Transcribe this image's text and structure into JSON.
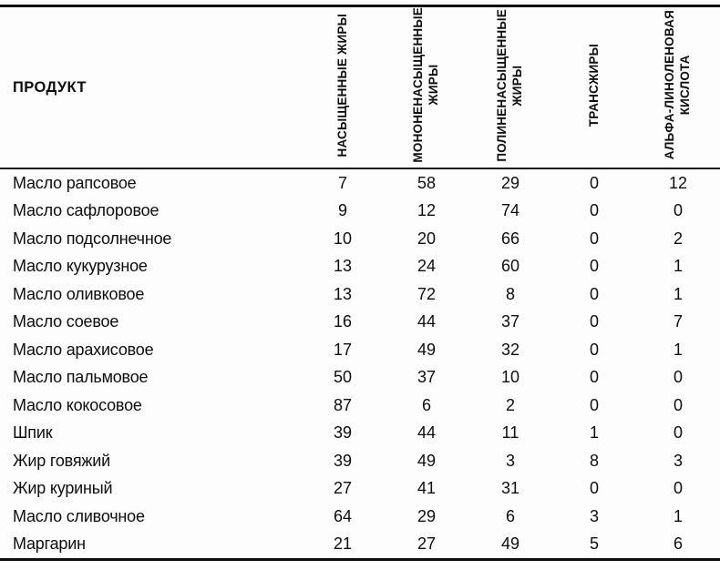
{
  "table": {
    "product_header": "ПРОДУКТ",
    "columns": [
      {
        "id": "saturated-fats",
        "label": "НАСЫЩЕННЫЕ ЖИРЫ",
        "lines": [
          "НАСЫЩЕННЫЕ ЖИРЫ"
        ]
      },
      {
        "id": "monounsaturated-fats",
        "label": "МОНОНЕНАСЫЩЕННЫЕ ЖИРЫ",
        "lines": [
          "МОНОНЕНАСЫЩЕННЫЕ",
          "ЖИРЫ"
        ]
      },
      {
        "id": "polyunsaturated-fats",
        "label": "ПОЛИНЕНАСЫЩЕННЫЕ ЖИРЫ",
        "lines": [
          "ПОЛИНЕНАСЫЩЕННЫЕ",
          "ЖИРЫ"
        ]
      },
      {
        "id": "trans-fats",
        "label": "ТРАНСЖИРЫ",
        "lines": [
          "ТРАНСЖИРЫ"
        ]
      },
      {
        "id": "alpha-linolenic-acid",
        "label": "АЛЬФА-ЛИНОЛЕНОВАЯ КИСЛОТА",
        "lines": [
          "АЛЬФА-ЛИНОЛЕНОВАЯ",
          "КИСЛОТА"
        ]
      }
    ],
    "rows": [
      {
        "product": "Масло рапсовое",
        "values": [
          7,
          58,
          29,
          0,
          12
        ]
      },
      {
        "product": "Масло сафлоровое",
        "values": [
          9,
          12,
          74,
          0,
          0
        ]
      },
      {
        "product": "Масло подсолнечное",
        "values": [
          10,
          20,
          66,
          0,
          2
        ]
      },
      {
        "product": "Масло кукурузное",
        "values": [
          13,
          24,
          60,
          0,
          1
        ]
      },
      {
        "product": "Масло оливковое",
        "values": [
          13,
          72,
          8,
          0,
          1
        ]
      },
      {
        "product": "Масло соевое",
        "values": [
          16,
          44,
          37,
          0,
          7
        ]
      },
      {
        "product": "Масло арахисовое",
        "values": [
          17,
          49,
          32,
          0,
          1
        ]
      },
      {
        "product": "Масло пальмовое",
        "values": [
          50,
          37,
          10,
          0,
          0
        ]
      },
      {
        "product": "Масло кокосовое",
        "values": [
          87,
          6,
          2,
          0,
          0
        ]
      },
      {
        "product": "Шпик",
        "values": [
          39,
          44,
          11,
          1,
          0
        ]
      },
      {
        "product": "Жир говяжий",
        "values": [
          39,
          49,
          3,
          8,
          3
        ]
      },
      {
        "product": "Жир куриный",
        "values": [
          27,
          41,
          31,
          0,
          0
        ]
      },
      {
        "product": "Масло сливочное",
        "values": [
          64,
          29,
          6,
          3,
          1
        ]
      },
      {
        "product": "Маргарин",
        "values": [
          21,
          27,
          49,
          5,
          6
        ]
      }
    ]
  },
  "colors": {
    "text": "#0e0e0e",
    "border": "#0e0e0e",
    "background": "#fdfdfd"
  }
}
